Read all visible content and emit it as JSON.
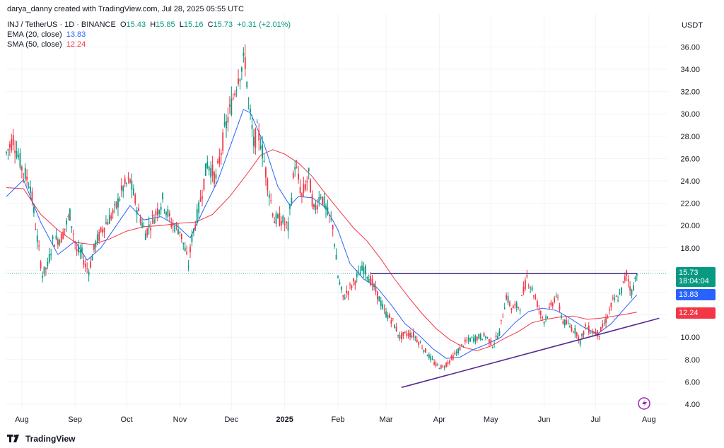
{
  "attribution": "darya_danny created with TradingView.com, Jul 28, 2025 05:55 UTC",
  "legend": {
    "symbol": "INJ / TetherUS · 1D · BINANCE",
    "o_label": "O",
    "o": "15.43",
    "h_label": "H",
    "h": "15.85",
    "l_label": "L",
    "l": "15.16",
    "c_label": "C",
    "c": "15.73",
    "change": "+0.31 (+2.01%)",
    "ema_label": "EMA (20, close)",
    "ema_value": "13.83",
    "sma_label": "SMA (50, close)",
    "sma_value": "12.24"
  },
  "currency": "USDT",
  "price_tags": {
    "last": "15.73",
    "countdown": "18:04:04",
    "ema": "13.83",
    "sma": "12.24"
  },
  "footer": {
    "brand": "TradingView"
  },
  "colors": {
    "up": "#089981",
    "down": "#f23645",
    "ema": "#2962ff",
    "sma": "#f23645",
    "trend": "#5b2c91",
    "grid": "#f0f3fa"
  },
  "chart_data": {
    "type": "candlestick",
    "title": "INJ / TetherUS · 1D · BINANCE",
    "ylim": [
      4,
      37.5
    ],
    "y_ticks": [
      "4.00",
      "6.00",
      "8.00",
      "10.00",
      "12.00",
      "14.00",
      "16.00",
      "18.00",
      "20.00",
      "22.00",
      "24.00",
      "26.00",
      "28.00",
      "30.00",
      "32.00",
      "34.00",
      "36.00"
    ],
    "x_ticks": [
      {
        "label": "Aug",
        "day": 9
      },
      {
        "label": "Sep",
        "day": 40
      },
      {
        "label": "Oct",
        "day": 70
      },
      {
        "label": "Nov",
        "day": 101
      },
      {
        "label": "Dec",
        "day": 131
      },
      {
        "label": "2025",
        "day": 162
      },
      {
        "label": "Feb",
        "day": 193
      },
      {
        "label": "Mar",
        "day": 221
      },
      {
        "label": "Apr",
        "day": 252
      },
      {
        "label": "May",
        "day": 282
      },
      {
        "label": "Jun",
        "day": 313
      },
      {
        "label": "Jul",
        "day": 343
      },
      {
        "label": "Aug",
        "day": 374
      }
    ],
    "price_path": [
      [
        0,
        26.5
      ],
      [
        4,
        27.8
      ],
      [
        9,
        25.2
      ],
      [
        14,
        23.6
      ],
      [
        18,
        18.8
      ],
      [
        21,
        15.6
      ],
      [
        24,
        16.4
      ],
      [
        27,
        18.6
      ],
      [
        32,
        18.9
      ],
      [
        37,
        21.0
      ],
      [
        41,
        17.7
      ],
      [
        44,
        17.5
      ],
      [
        46,
        16.4
      ],
      [
        48,
        16.0
      ],
      [
        52,
        18.4
      ],
      [
        57,
        20.0
      ],
      [
        63,
        21.3
      ],
      [
        68,
        23.4
      ],
      [
        72,
        24.0
      ],
      [
        76,
        21.6
      ],
      [
        81,
        19.3
      ],
      [
        86,
        20.8
      ],
      [
        91,
        22.3
      ],
      [
        96,
        20.2
      ],
      [
        101,
        19.6
      ],
      [
        104,
        17.8
      ],
      [
        106,
        16.5
      ],
      [
        108,
        18.9
      ],
      [
        112,
        21.5
      ],
      [
        117,
        25.6
      ],
      [
        122,
        24.2
      ],
      [
        127,
        28.4
      ],
      [
        131,
        30.8
      ],
      [
        135,
        33.5
      ],
      [
        139,
        34.8
      ],
      [
        141,
        31.0
      ],
      [
        144,
        27.3
      ],
      [
        146,
        28.4
      ],
      [
        148,
        27.6
      ],
      [
        152,
        23.9
      ],
      [
        156,
        20.5
      ],
      [
        160,
        20.5
      ],
      [
        164,
        19.8
      ],
      [
        168,
        25.6
      ],
      [
        172,
        22.6
      ],
      [
        176,
        24.5
      ],
      [
        179,
        21.3
      ],
      [
        183,
        22.9
      ],
      [
        187,
        21.0
      ],
      [
        190,
        20.0
      ],
      [
        193,
        15.4
      ],
      [
        196,
        13.5
      ],
      [
        200,
        14.4
      ],
      [
        204,
        15.4
      ],
      [
        208,
        16.2
      ],
      [
        212,
        15.1
      ],
      [
        216,
        13.8
      ],
      [
        220,
        12.3
      ],
      [
        225,
        11.4
      ],
      [
        229,
        10.0
      ],
      [
        233,
        10.3
      ],
      [
        237,
        10.2
      ],
      [
        241,
        9.4
      ],
      [
        246,
        8.3
      ],
      [
        250,
        7.5
      ],
      [
        254,
        7.3
      ],
      [
        258,
        7.9
      ],
      [
        262,
        8.6
      ],
      [
        266,
        9.4
      ],
      [
        270,
        9.8
      ],
      [
        275,
        10.0
      ],
      [
        279,
        10.1
      ],
      [
        283,
        9.3
      ],
      [
        287,
        10.4
      ],
      [
        291,
        13.7
      ],
      [
        294,
        12.6
      ],
      [
        299,
        12.8
      ],
      [
        303,
        15.4
      ],
      [
        307,
        13.9
      ],
      [
        311,
        12.1
      ],
      [
        313,
        11.5
      ],
      [
        316,
        12.4
      ],
      [
        320,
        13.8
      ],
      [
        324,
        11.4
      ],
      [
        328,
        11.0
      ],
      [
        332,
        10.4
      ],
      [
        334,
        9.6
      ],
      [
        337,
        10.9
      ],
      [
        341,
        10.5
      ],
      [
        345,
        10.3
      ],
      [
        349,
        11.5
      ],
      [
        353,
        13.2
      ],
      [
        357,
        13.7
      ],
      [
        361,
        15.7
      ],
      [
        364,
        14.0
      ],
      [
        367,
        15.8
      ]
    ],
    "ema_20_path": [
      [
        0,
        22.6
      ],
      [
        10,
        24.1
      ],
      [
        20,
        20.3
      ],
      [
        30,
        17.4
      ],
      [
        40,
        18.6
      ],
      [
        47,
        16.9
      ],
      [
        55,
        18.0
      ],
      [
        64,
        20.0
      ],
      [
        72,
        21.8
      ],
      [
        80,
        20.5
      ],
      [
        90,
        20.8
      ],
      [
        100,
        19.9
      ],
      [
        107,
        18.9
      ],
      [
        115,
        21.5
      ],
      [
        123,
        24.0
      ],
      [
        131,
        27.4
      ],
      [
        138,
        30.4
      ],
      [
        142,
        30.1
      ],
      [
        150,
        27.3
      ],
      [
        158,
        23.5
      ],
      [
        165,
        21.8
      ],
      [
        170,
        22.6
      ],
      [
        178,
        22.5
      ],
      [
        186,
        21.6
      ],
      [
        193,
        19.6
      ],
      [
        200,
        16.6
      ],
      [
        208,
        15.2
      ],
      [
        216,
        14.4
      ],
      [
        224,
        12.9
      ],
      [
        232,
        11.2
      ],
      [
        240,
        10.2
      ],
      [
        248,
        9.0
      ],
      [
        256,
        8.1
      ],
      [
        264,
        8.2
      ],
      [
        272,
        8.9
      ],
      [
        280,
        9.4
      ],
      [
        288,
        10.0
      ],
      [
        296,
        11.3
      ],
      [
        304,
        12.3
      ],
      [
        312,
        12.6
      ],
      [
        320,
        12.4
      ],
      [
        328,
        11.7
      ],
      [
        336,
        10.9
      ],
      [
        344,
        10.3
      ],
      [
        352,
        11.2
      ],
      [
        360,
        12.6
      ],
      [
        367,
        13.8
      ]
    ],
    "sma_50_path": [
      [
        0,
        23.4
      ],
      [
        10,
        23.3
      ],
      [
        20,
        21.0
      ],
      [
        30,
        19.6
      ],
      [
        40,
        18.5
      ],
      [
        50,
        18.3
      ],
      [
        60,
        18.8
      ],
      [
        70,
        19.5
      ],
      [
        80,
        19.9
      ],
      [
        90,
        20.0
      ],
      [
        100,
        20.2
      ],
      [
        110,
        20.3
      ],
      [
        120,
        21.0
      ],
      [
        130,
        22.6
      ],
      [
        140,
        24.6
      ],
      [
        148,
        26.3
      ],
      [
        155,
        26.8
      ],
      [
        162,
        26.4
      ],
      [
        170,
        25.6
      ],
      [
        178,
        24.4
      ],
      [
        186,
        22.8
      ],
      [
        194,
        21.3
      ],
      [
        202,
        19.8
      ],
      [
        210,
        18.6
      ],
      [
        218,
        17.0
      ],
      [
        226,
        15.2
      ],
      [
        234,
        13.6
      ],
      [
        242,
        12.1
      ],
      [
        250,
        10.8
      ],
      [
        258,
        9.8
      ],
      [
        266,
        9.1
      ],
      [
        274,
        8.8
      ],
      [
        282,
        9.2
      ],
      [
        290,
        9.9
      ],
      [
        298,
        10.5
      ],
      [
        306,
        11.3
      ],
      [
        314,
        11.6
      ],
      [
        322,
        11.8
      ],
      [
        330,
        11.9
      ],
      [
        338,
        11.6
      ],
      [
        346,
        11.7
      ],
      [
        354,
        11.9
      ],
      [
        362,
        12.1
      ],
      [
        367,
        12.24
      ]
    ],
    "resistance_line": {
      "day_start": 212,
      "day_end": 367,
      "price": 15.7
    },
    "support_trendline": {
      "day_start": 230,
      "price_start": 5.5,
      "day_end": 380,
      "price_end": 11.7
    },
    "last_price": 15.73
  }
}
